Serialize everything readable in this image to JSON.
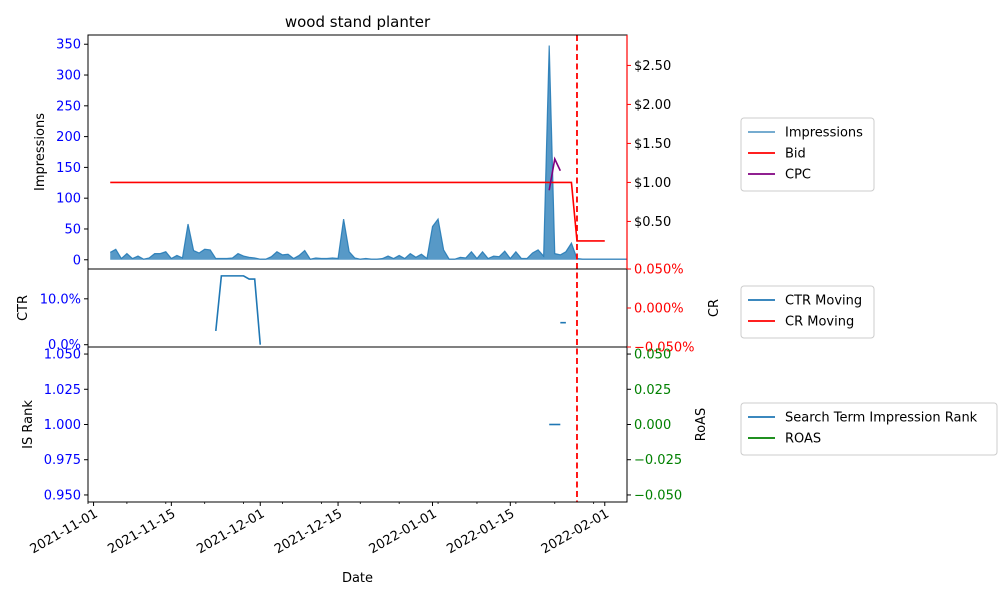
{
  "colors": {
    "impressions": "#1f77b4",
    "bid": "#ff0000",
    "cpc": "#800080",
    "ctr": "#1f77b4",
    "cr": "#ff0000",
    "is_rank": "#1f77b4",
    "roas": "#008000",
    "left_ticks": "#0000ff",
    "cr_ticks": "#ff0000",
    "roas_ticks": "#008000"
  },
  "chart_data": [
    {
      "type": "area",
      "panel": "top",
      "title": "wood stand planter",
      "ylabel": "Impressions",
      "ylim": [
        -15,
        365
      ],
      "yticks": [
        0,
        50,
        100,
        150,
        200,
        250,
        300,
        350
      ],
      "y2lim": [
        -0.11,
        2.89
      ],
      "y2ticks": [
        0.5,
        1.0,
        1.5,
        2.0,
        2.5
      ],
      "y2ticklabels": [
        "$0.50",
        "$1.00",
        "$1.50",
        "$2.00",
        "$2.50"
      ],
      "vline_date": "2022-01-27",
      "legend": [
        "Impressions",
        "Bid",
        "CPC"
      ],
      "legend_position": "right",
      "series": [
        {
          "name": "Impressions",
          "axis": "left",
          "start": "2021-11-04",
          "values": [
            12,
            17,
            2,
            10,
            2,
            6,
            1,
            3,
            10,
            10,
            13,
            2,
            7,
            3,
            58,
            15,
            11,
            17,
            16,
            2,
            2,
            2,
            3,
            10,
            6,
            4,
            3,
            1,
            1,
            5,
            13,
            8,
            9,
            2,
            7,
            15,
            1,
            3,
            2,
            2,
            3,
            2,
            66,
            13,
            3,
            1,
            2,
            1,
            1,
            2,
            6,
            2,
            7,
            2,
            10,
            4,
            9,
            2,
            54,
            66,
            16,
            1,
            1,
            4,
            3,
            13,
            2,
            13,
            2,
            6,
            5,
            14,
            2,
            13,
            2,
            2,
            11,
            16,
            6,
            348,
            10,
            8,
            13,
            27,
            2,
            1,
            1,
            1,
            1,
            1,
            1,
            1,
            1,
            1
          ]
        },
        {
          "name": "Bid",
          "axis": "right",
          "points": [
            [
              "2021-11-04",
              1.0
            ],
            [
              "2022-01-26",
              1.0
            ],
            [
              "2022-01-27",
              0.25
            ],
            [
              "2022-02-01",
              0.25
            ]
          ]
        },
        {
          "name": "CPC",
          "axis": "right",
          "points": [
            [
              "2022-01-22",
              0.9
            ],
            [
              "2022-01-23",
              1.3
            ],
            [
              "2022-01-24",
              1.15
            ]
          ]
        }
      ]
    },
    {
      "type": "line",
      "panel": "middle",
      "ylabel": "CTR",
      "y2label": "CR",
      "ylim": [
        -0.005,
        0.165
      ],
      "yticks": [
        0.0,
        0.1
      ],
      "yticklabels": [
        "0.0%",
        "10.0%"
      ],
      "y2lim": [
        -0.0005,
        0.0005
      ],
      "y2ticks": [
        -0.0005,
        0.0,
        0.0005
      ],
      "y2ticklabels": [
        "−0.050%",
        "0.000%",
        "0.050%"
      ],
      "legend": [
        "CTR Moving",
        "CR Moving"
      ],
      "legend_position": "right",
      "series": [
        {
          "name": "CTR Moving",
          "points": [
            [
              "2021-11-23",
              0.03
            ],
            [
              "2021-11-24",
              0.15
            ],
            [
              "2021-11-25",
              0.15
            ],
            [
              "2021-11-26",
              0.15
            ],
            [
              "2021-11-27",
              0.15
            ],
            [
              "2021-11-28",
              0.15
            ],
            [
              "2021-11-29",
              0.143
            ],
            [
              "2021-11-30",
              0.143
            ],
            [
              "2021-12-01",
              0.0
            ]
          ]
        },
        {
          "name": "CTR Moving",
          "points": [
            [
              "2022-01-24",
              0.048
            ],
            [
              "2022-01-25",
              0.048
            ]
          ]
        },
        {
          "name": "CR Moving",
          "points": []
        }
      ]
    },
    {
      "type": "line",
      "panel": "bottom",
      "xlabel": "Date",
      "ylabel": "IS Rank",
      "y2label": "RoAS",
      "ylim": [
        0.945,
        1.055
      ],
      "yticks": [
        0.95,
        0.975,
        1.0,
        1.025,
        1.05
      ],
      "yticklabels": [
        "0.950",
        "0.975",
        "1.000",
        "1.025",
        "1.050"
      ],
      "y2lim": [
        -0.055,
        0.055
      ],
      "y2ticks": [
        -0.05,
        -0.025,
        0.0,
        0.025,
        0.05
      ],
      "y2ticklabels": [
        "−0.050",
        "−0.025",
        "0.000",
        "0.025",
        "0.050"
      ],
      "xlim": [
        "2021-10-31",
        "2022-02-05"
      ],
      "xticks": [
        "2021-11-01",
        "2021-11-15",
        "2021-12-01",
        "2021-12-15",
        "2022-01-01",
        "2022-01-15",
        "2022-02-01"
      ],
      "legend": [
        "Search Term Impression Rank",
        "ROAS"
      ],
      "legend_position": "right",
      "series": [
        {
          "name": "Search Term Impression Rank",
          "points": [
            [
              "2022-01-22",
              1.0
            ],
            [
              "2022-01-24",
              1.0
            ]
          ]
        },
        {
          "name": "ROAS",
          "points": []
        }
      ]
    }
  ]
}
